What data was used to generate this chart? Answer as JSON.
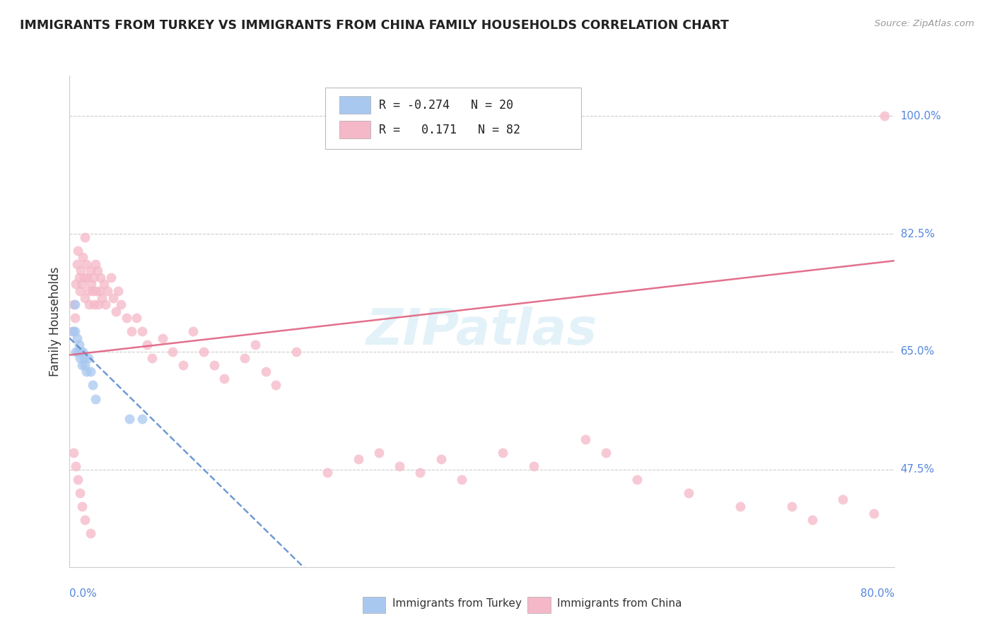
{
  "title": "IMMIGRANTS FROM TURKEY VS IMMIGRANTS FROM CHINA FAMILY HOUSEHOLDS CORRELATION CHART",
  "source": "Source: ZipAtlas.com",
  "ylabel": "Family Households",
  "xlim": [
    0.0,
    0.8
  ],
  "ylim": [
    0.33,
    1.06
  ],
  "x_tick_left": "0.0%",
  "x_tick_right": "80.0%",
  "y_tick_labels": [
    "100.0%",
    "82.5%",
    "65.0%",
    "47.5%"
  ],
  "y_tick_vals": [
    1.0,
    0.825,
    0.65,
    0.475
  ],
  "turkey_color": "#a8c8f0",
  "china_color": "#f5b8c8",
  "turkey_line_color": "#5588cc",
  "china_line_color": "#e06080",
  "legend_turkey_R": "-0.274",
  "legend_turkey_N": "20",
  "legend_china_R": "0.171",
  "legend_china_N": "82",
  "turkey_x": [
    0.003,
    0.005,
    0.005,
    0.006,
    0.007,
    0.008,
    0.009,
    0.01,
    0.011,
    0.012,
    0.013,
    0.014,
    0.015,
    0.016,
    0.018,
    0.02,
    0.022,
    0.025,
    0.058,
    0.07
  ],
  "turkey_y": [
    0.68,
    0.72,
    0.68,
    0.65,
    0.67,
    0.65,
    0.66,
    0.64,
    0.65,
    0.63,
    0.65,
    0.64,
    0.63,
    0.62,
    0.64,
    0.62,
    0.6,
    0.58,
    0.55,
    0.55
  ],
  "china_x": [
    0.003,
    0.004,
    0.005,
    0.006,
    0.007,
    0.008,
    0.009,
    0.01,
    0.011,
    0.012,
    0.013,
    0.014,
    0.015,
    0.015,
    0.016,
    0.017,
    0.018,
    0.019,
    0.02,
    0.021,
    0.022,
    0.023,
    0.024,
    0.025,
    0.026,
    0.027,
    0.028,
    0.029,
    0.03,
    0.031,
    0.033,
    0.035,
    0.037,
    0.04,
    0.042,
    0.045,
    0.047,
    0.05,
    0.055,
    0.06,
    0.065,
    0.07,
    0.075,
    0.08,
    0.09,
    0.1,
    0.11,
    0.12,
    0.13,
    0.14,
    0.15,
    0.17,
    0.18,
    0.19,
    0.2,
    0.22,
    0.25,
    0.28,
    0.3,
    0.32,
    0.34,
    0.36,
    0.38,
    0.42,
    0.45,
    0.5,
    0.52,
    0.55,
    0.6,
    0.65,
    0.7,
    0.72,
    0.75,
    0.78,
    0.79,
    0.004,
    0.006,
    0.008,
    0.01,
    0.012,
    0.015,
    0.02
  ],
  "china_y": [
    0.68,
    0.72,
    0.7,
    0.75,
    0.78,
    0.8,
    0.76,
    0.74,
    0.77,
    0.75,
    0.79,
    0.76,
    0.73,
    0.82,
    0.78,
    0.76,
    0.74,
    0.72,
    0.77,
    0.75,
    0.74,
    0.76,
    0.72,
    0.78,
    0.74,
    0.77,
    0.72,
    0.74,
    0.76,
    0.73,
    0.75,
    0.72,
    0.74,
    0.76,
    0.73,
    0.71,
    0.74,
    0.72,
    0.7,
    0.68,
    0.7,
    0.68,
    0.66,
    0.64,
    0.67,
    0.65,
    0.63,
    0.68,
    0.65,
    0.63,
    0.61,
    0.64,
    0.66,
    0.62,
    0.6,
    0.65,
    0.47,
    0.49,
    0.5,
    0.48,
    0.47,
    0.49,
    0.46,
    0.5,
    0.48,
    0.52,
    0.5,
    0.46,
    0.44,
    0.42,
    0.42,
    0.4,
    0.43,
    0.41,
    1.0,
    0.5,
    0.48,
    0.46,
    0.44,
    0.42,
    0.4,
    0.38
  ]
}
